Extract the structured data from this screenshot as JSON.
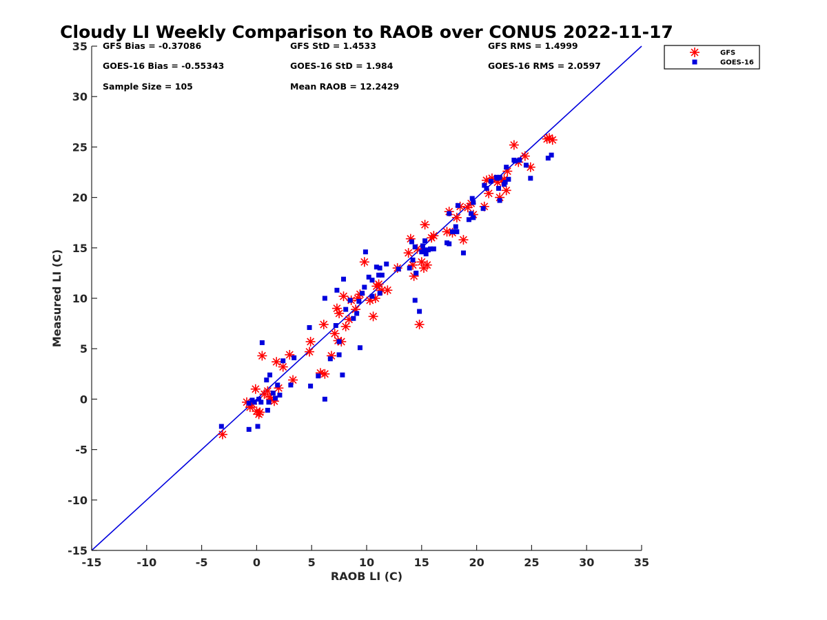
{
  "chart_data": {
    "type": "scatter",
    "title": "Cloudy LI Weekly Comparison to RAOB over CONUS 2022-11-17",
    "xlabel": "RAOB LI (C)",
    "ylabel": "Measured LI (C)",
    "xlim": [
      -15,
      35
    ],
    "ylim": [
      -15,
      35
    ],
    "xticks": [
      -15,
      -10,
      -5,
      0,
      5,
      10,
      15,
      20,
      25,
      30,
      35
    ],
    "yticks": [
      -15,
      -10,
      -5,
      0,
      5,
      10,
      15,
      20,
      25,
      30,
      35
    ],
    "grid": false,
    "legend_position": "outside-top-right",
    "reference_line": {
      "type": "one-to-one",
      "color": "#0000dd"
    },
    "stats": [
      "GFS Bias = -0.37086",
      "GFS StD = 1.4533",
      "GFS RMS = 1.4999",
      "GOES-16 Bias = -0.55343",
      "GOES-16 StD = 1.984",
      "GOES-16 RMS = 2.0597",
      "Sample Size = 105",
      "Mean RAOB = 12.2429"
    ],
    "series": [
      {
        "name": "GFS",
        "marker": "asterisk",
        "color": "#ff0000",
        "points": [
          [
            -3.1,
            -3.5
          ],
          [
            -0.9,
            -0.3
          ],
          [
            -0.6,
            -0.8
          ],
          [
            -0.4,
            -0.5
          ],
          [
            -0.1,
            1.0
          ],
          [
            0.0,
            -1.2
          ],
          [
            0.2,
            -1.5
          ],
          [
            0.3,
            -1.3
          ],
          [
            0.5,
            4.3
          ],
          [
            0.7,
            0.5
          ],
          [
            1.0,
            0.8
          ],
          [
            1.2,
            0.2
          ],
          [
            1.3,
            0.0
          ],
          [
            1.6,
            -0.2
          ],
          [
            1.8,
            3.7
          ],
          [
            2.0,
            1.1
          ],
          [
            2.4,
            3.2
          ],
          [
            3.0,
            4.4
          ],
          [
            3.3,
            1.9
          ],
          [
            4.8,
            4.7
          ],
          [
            4.9,
            5.7
          ],
          [
            5.8,
            2.6
          ],
          [
            6.2,
            2.5
          ],
          [
            6.1,
            7.4
          ],
          [
            6.8,
            4.3
          ],
          [
            7.1,
            6.5
          ],
          [
            7.3,
            9.0
          ],
          [
            7.5,
            8.5
          ],
          [
            7.4,
            5.8
          ],
          [
            7.7,
            5.7
          ],
          [
            7.9,
            10.2
          ],
          [
            8.1,
            7.2
          ],
          [
            8.4,
            7.9
          ],
          [
            8.6,
            9.8
          ],
          [
            9.0,
            8.9
          ],
          [
            9.2,
            10.0
          ],
          [
            9.4,
            10.4
          ],
          [
            9.8,
            13.6
          ],
          [
            10.3,
            9.8
          ],
          [
            10.6,
            8.2
          ],
          [
            10.8,
            10.0
          ],
          [
            10.9,
            11.2
          ],
          [
            11.1,
            11.4
          ],
          [
            11.4,
            10.8
          ],
          [
            11.9,
            10.8
          ],
          [
            12.8,
            13.0
          ],
          [
            13.8,
            14.5
          ],
          [
            14.0,
            15.9
          ],
          [
            14.2,
            13.3
          ],
          [
            14.3,
            12.2
          ],
          [
            14.6,
            14.9
          ],
          [
            14.8,
            7.4
          ],
          [
            15.0,
            13.6
          ],
          [
            15.2,
            13.0
          ],
          [
            15.3,
            17.3
          ],
          [
            15.5,
            13.3
          ],
          [
            15.9,
            16.0
          ],
          [
            16.1,
            16.2
          ],
          [
            17.3,
            16.6
          ],
          [
            17.5,
            18.6
          ],
          [
            17.8,
            16.5
          ],
          [
            18.2,
            18.0
          ],
          [
            18.5,
            19.1
          ],
          [
            18.8,
            15.8
          ],
          [
            19.2,
            19.0
          ],
          [
            19.5,
            19.4
          ],
          [
            19.7,
            18.3
          ],
          [
            20.7,
            19.1
          ],
          [
            20.9,
            21.7
          ],
          [
            21.1,
            20.4
          ],
          [
            21.4,
            21.9
          ],
          [
            21.9,
            21.5
          ],
          [
            22.1,
            20.0
          ],
          [
            22.3,
            21.7
          ],
          [
            22.5,
            21.8
          ],
          [
            22.7,
            20.7
          ],
          [
            22.8,
            22.6
          ],
          [
            23.4,
            25.2
          ],
          [
            23.8,
            23.5
          ],
          [
            24.4,
            24.1
          ],
          [
            24.9,
            23.0
          ],
          [
            26.4,
            25.8
          ],
          [
            26.6,
            25.9
          ],
          [
            26.9,
            25.7
          ]
        ]
      },
      {
        "name": "GOES-16",
        "marker": "square",
        "color": "#0000dd",
        "points": [
          [
            -3.2,
            -2.7
          ],
          [
            -0.7,
            -3.0
          ],
          [
            -0.7,
            -0.4
          ],
          [
            -0.4,
            -0.1
          ],
          [
            -0.2,
            -0.3
          ],
          [
            0.1,
            -2.7
          ],
          [
            0.2,
            0.0
          ],
          [
            0.4,
            -0.3
          ],
          [
            0.5,
            5.6
          ],
          [
            0.9,
            1.9
          ],
          [
            1.0,
            -1.1
          ],
          [
            1.1,
            -0.3
          ],
          [
            1.2,
            2.4
          ],
          [
            1.5,
            0.6
          ],
          [
            1.7,
            0.1
          ],
          [
            1.9,
            1.4
          ],
          [
            2.1,
            0.4
          ],
          [
            2.4,
            3.8
          ],
          [
            3.1,
            1.4
          ],
          [
            3.4,
            4.1
          ],
          [
            4.9,
            1.3
          ],
          [
            4.8,
            7.1
          ],
          [
            5.6,
            2.3
          ],
          [
            6.2,
            10.0
          ],
          [
            6.2,
            0.0
          ],
          [
            6.7,
            4.0
          ],
          [
            7.2,
            7.3
          ],
          [
            7.3,
            10.8
          ],
          [
            7.5,
            4.4
          ],
          [
            7.5,
            5.7
          ],
          [
            7.8,
            2.4
          ],
          [
            7.9,
            11.9
          ],
          [
            8.1,
            8.9
          ],
          [
            8.5,
            9.8
          ],
          [
            8.8,
            8.0
          ],
          [
            9.1,
            8.5
          ],
          [
            9.3,
            9.7
          ],
          [
            9.4,
            5.1
          ],
          [
            9.6,
            10.5
          ],
          [
            9.8,
            11.1
          ],
          [
            9.9,
            14.6
          ],
          [
            10.2,
            12.1
          ],
          [
            10.5,
            10.2
          ],
          [
            10.5,
            11.8
          ],
          [
            10.9,
            13.1
          ],
          [
            11.1,
            12.3
          ],
          [
            11.2,
            10.5
          ],
          [
            11.2,
            13.0
          ],
          [
            11.4,
            12.3
          ],
          [
            11.8,
            13.4
          ],
          [
            12.9,
            12.9
          ],
          [
            13.9,
            13.0
          ],
          [
            14.1,
            15.6
          ],
          [
            14.2,
            13.8
          ],
          [
            14.4,
            15.1
          ],
          [
            14.4,
            9.8
          ],
          [
            14.5,
            12.5
          ],
          [
            14.8,
            8.7
          ],
          [
            15.0,
            14.6
          ],
          [
            15.1,
            15.2
          ],
          [
            15.2,
            14.8
          ],
          [
            15.3,
            15.7
          ],
          [
            15.4,
            14.4
          ],
          [
            15.6,
            14.8
          ],
          [
            15.8,
            14.9
          ],
          [
            16.1,
            14.9
          ],
          [
            17.3,
            15.5
          ],
          [
            17.5,
            18.4
          ],
          [
            17.5,
            15.4
          ],
          [
            17.8,
            16.6
          ],
          [
            18.1,
            17.1
          ],
          [
            18.2,
            16.6
          ],
          [
            18.3,
            19.2
          ],
          [
            18.8,
            14.5
          ],
          [
            19.3,
            17.8
          ],
          [
            19.5,
            18.4
          ],
          [
            19.6,
            19.9
          ],
          [
            19.7,
            19.5
          ],
          [
            19.7,
            18.0
          ],
          [
            20.6,
            18.9
          ],
          [
            20.7,
            21.2
          ],
          [
            20.9,
            20.9
          ],
          [
            21.3,
            21.6
          ],
          [
            21.8,
            22.0
          ],
          [
            21.9,
            21.9
          ],
          [
            22.0,
            20.9
          ],
          [
            22.1,
            19.7
          ],
          [
            22.1,
            22.0
          ],
          [
            22.5,
            21.3
          ],
          [
            22.6,
            21.5
          ],
          [
            22.7,
            23.0
          ],
          [
            22.9,
            21.8
          ],
          [
            23.4,
            23.7
          ],
          [
            23.5,
            23.6
          ],
          [
            23.9,
            23.7
          ],
          [
            24.5,
            23.2
          ],
          [
            24.9,
            21.9
          ],
          [
            26.5,
            23.9
          ],
          [
            26.8,
            24.2
          ]
        ]
      }
    ]
  }
}
